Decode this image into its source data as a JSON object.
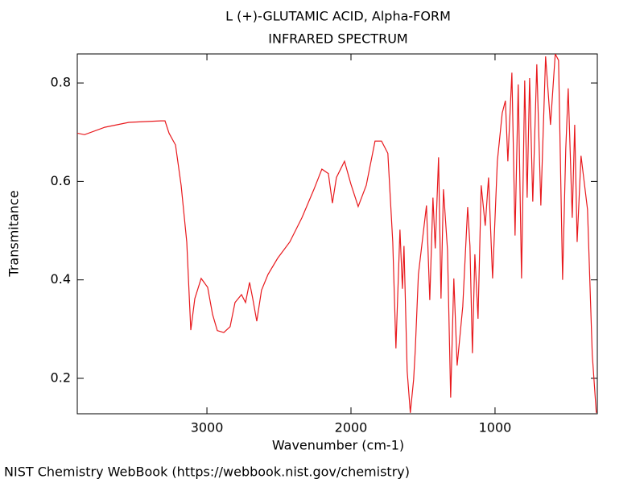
{
  "chart_data": {
    "type": "line",
    "title": "L (+)-GLUTAMIC ACID, Alpha-FORM",
    "subtitle": "INFRARED SPECTRUM",
    "x_label": "Wavenumber (cm-1)",
    "y_label": "Transmitance",
    "footer": "NIST Chemistry WebBook (https://webbook.nist.gov/chemistry)",
    "xlim": [
      3900,
      290
    ],
    "xticks": [
      3000,
      2000,
      1000
    ],
    "ylim": [
      0.128,
      0.859
    ],
    "yticks": [
      0.2,
      0.4,
      0.6,
      0.8
    ],
    "x": [
      3900,
      3850,
      3710,
      3542,
      3319,
      3291,
      3263,
      3218,
      3179,
      3140,
      3112,
      3084,
      3040,
      2995,
      2961,
      2928,
      2883,
      2839,
      2805,
      2760,
      2732,
      2704,
      2682,
      2654,
      2621,
      2576,
      2509,
      2425,
      2341,
      2257,
      2202,
      2157,
      2129,
      2101,
      2045,
      2001,
      1950,
      1894,
      1833,
      1788,
      1744,
      1710,
      1688,
      1660,
      1643,
      1632,
      1610,
      1588,
      1565,
      1554,
      1532,
      1476,
      1453,
      1431,
      1415,
      1392,
      1375,
      1358,
      1330,
      1308,
      1286,
      1263,
      1224,
      1190,
      1174,
      1157,
      1140,
      1118,
      1096,
      1068,
      1045,
      1017,
      984,
      950,
      928,
      911,
      883,
      861,
      839,
      816,
      794,
      777,
      760,
      738,
      710,
      682,
      649,
      615,
      582,
      559,
      531,
      509,
      492,
      464,
      447,
      430,
      403,
      358,
      325,
      297
    ],
    "series": [
      {
        "name": "spectrum",
        "color": "#e8191d",
        "values": [
          0.698,
          0.695,
          0.71,
          0.72,
          0.723,
          0.723,
          0.698,
          0.674,
          0.592,
          0.477,
          0.298,
          0.362,
          0.403,
          0.385,
          0.33,
          0.297,
          0.293,
          0.305,
          0.354,
          0.37,
          0.354,
          0.395,
          0.362,
          0.316,
          0.379,
          0.411,
          0.444,
          0.477,
          0.526,
          0.584,
          0.625,
          0.616,
          0.556,
          0.608,
          0.641,
          0.595,
          0.549,
          0.592,
          0.682,
          0.682,
          0.657,
          0.477,
          0.261,
          0.502,
          0.382,
          0.469,
          0.215,
          0.13,
          0.198,
          0.256,
          0.411,
          0.551,
          0.359,
          0.567,
          0.464,
          0.649,
          0.362,
          0.584,
          0.461,
          0.161,
          0.403,
          0.226,
          0.346,
          0.548,
          0.469,
          0.251,
          0.452,
          0.321,
          0.592,
          0.51,
          0.608,
          0.403,
          0.641,
          0.739,
          0.764,
          0.641,
          0.821,
          0.49,
          0.797,
          0.403,
          0.805,
          0.567,
          0.81,
          0.559,
          0.838,
          0.551,
          0.854,
          0.715,
          0.859,
          0.846,
          0.4,
          0.666,
          0.789,
          0.526,
          0.715,
          0.477,
          0.652,
          0.543,
          0.248,
          0.13
        ]
      }
    ]
  }
}
